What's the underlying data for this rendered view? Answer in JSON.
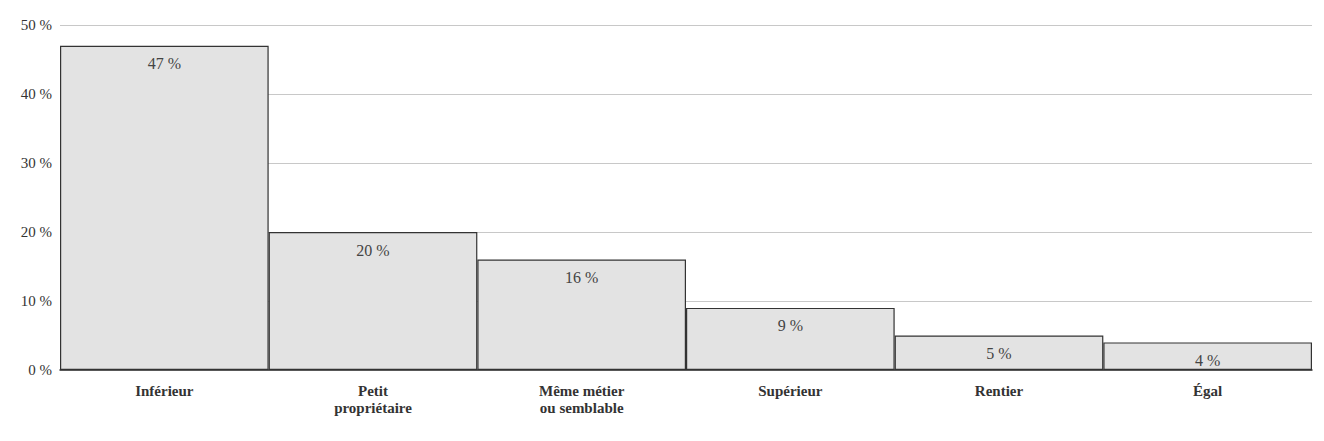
{
  "chart_data": {
    "type": "bar",
    "categories": [
      "Inférieur",
      "Petit\npropriétaire",
      "Même métier\nou semblable",
      "Supérieur",
      "Rentier",
      "Égal"
    ],
    "values": [
      47,
      20,
      16,
      9,
      5,
      4
    ],
    "value_labels": [
      "47 %",
      "20 %",
      "16 %",
      "9 %",
      "5 %",
      "4 %"
    ],
    "color": "#e3e3e3",
    "ylim": [
      0,
      50
    ],
    "yticks": [
      {
        "value": 0,
        "label": "0 %"
      },
      {
        "value": 10,
        "label": "10 %"
      },
      {
        "value": 20,
        "label": "20 %"
      },
      {
        "value": 30,
        "label": "30 %"
      },
      {
        "value": 40,
        "label": "40 %"
      },
      {
        "value": 50,
        "label": "50 %"
      }
    ],
    "grid": true,
    "data_labels": true
  }
}
